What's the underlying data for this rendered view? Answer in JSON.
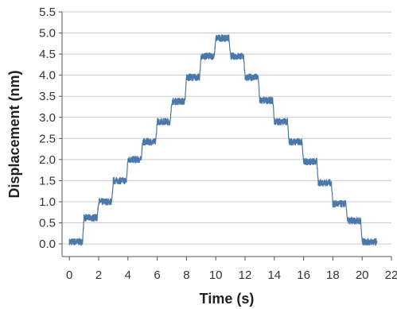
{
  "chart_data": {
    "type": "line",
    "xlabel": "Time (s)",
    "ylabel": "Displacement (nm)",
    "xlim": [
      -0.5,
      22
    ],
    "ylim": [
      -0.3,
      5.5
    ],
    "xticks": [
      0,
      2,
      4,
      6,
      8,
      10,
      12,
      14,
      16,
      18,
      20,
      22
    ],
    "yticks": [
      0.0,
      0.5,
      1.0,
      1.5,
      2.0,
      2.5,
      3.0,
      3.5,
      4.0,
      4.5,
      5.0,
      5.5
    ],
    "grid": "horizontal",
    "line_color": "#4a78a8",
    "series": [
      {
        "x": [
          0,
          0.9,
          1.0,
          1.9,
          2.0,
          2.9,
          3.0,
          3.9,
          4.0,
          4.9,
          5.0,
          5.9,
          6.0,
          6.9,
          7.0,
          7.9,
          8.0,
          8.9,
          9.0,
          9.9,
          10.0,
          10.9,
          11.0,
          11.9,
          12.0,
          12.9,
          13.0,
          13.9,
          14.0,
          14.9,
          15.0,
          15.9,
          16.0,
          16.9,
          17.0,
          17.9,
          18.0,
          18.9,
          19.0,
          19.9,
          20.0,
          21.0
        ],
        "y": [
          0.05,
          0.05,
          0.62,
          0.62,
          1.0,
          1.0,
          1.5,
          1.5,
          2.0,
          2.0,
          2.42,
          2.42,
          2.9,
          2.9,
          3.38,
          3.38,
          3.95,
          3.95,
          4.45,
          4.45,
          4.88,
          4.88,
          4.45,
          4.45,
          3.95,
          3.95,
          3.4,
          3.4,
          2.9,
          2.9,
          2.42,
          2.42,
          1.95,
          1.95,
          1.45,
          1.45,
          0.95,
          0.95,
          0.55,
          0.55,
          0.05,
          0.05
        ]
      }
    ]
  }
}
